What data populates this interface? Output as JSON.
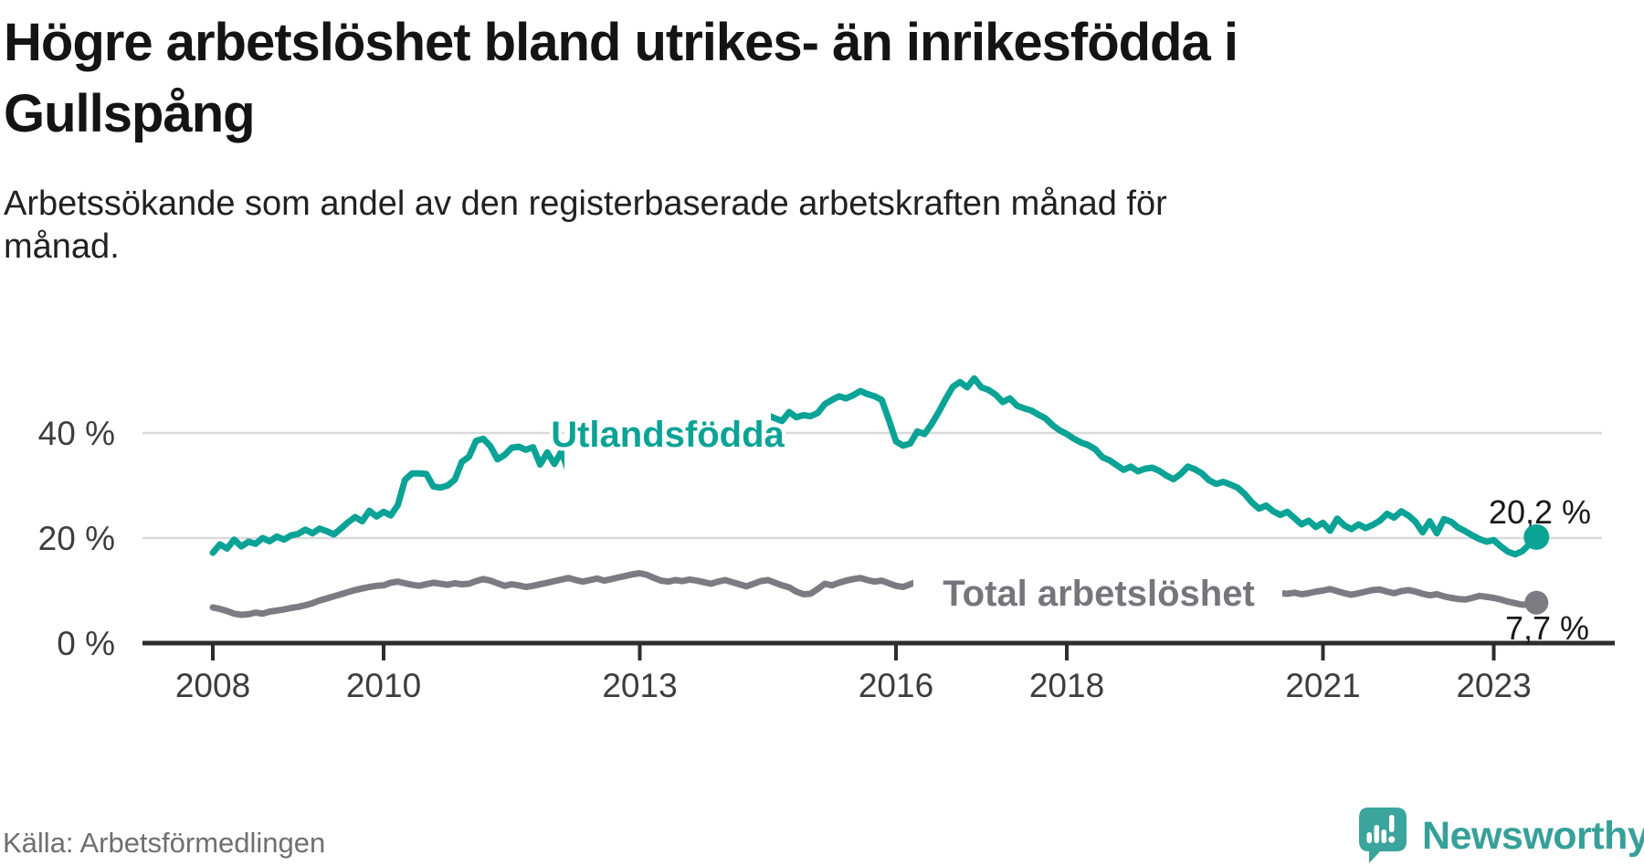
{
  "header": {
    "title_lines": [
      "Högre arbetslöshet bland utrikes- än inrikesfödda i",
      "Gullspång"
    ],
    "subtitle_lines": [
      "Arbetssökande som andel av den registerbaserade arbetskraften månad för",
      "månad."
    ]
  },
  "footer": {
    "source": "Källa: Arbetsförmedlingen",
    "brand": "Newsworthy",
    "brand_color": "#37a099"
  },
  "chart_data": {
    "type": "line",
    "title": "Högre arbetslöshet bland utrikes- än inrikesfödda i Gullspång",
    "subtitle": "Arbetssökande som andel av den registerbaserade arbetskraften månad för månad.",
    "unit": "%",
    "grid": "horizontal",
    "x_axis": {
      "start_year": 2008,
      "end_year": 2023.5,
      "ticks": [
        2008,
        2010,
        2013,
        2016,
        2018,
        2021,
        2023
      ]
    },
    "y_axis": {
      "min": 0,
      "max": 53,
      "ticks": [
        {
          "value": 0,
          "label": "0 %",
          "gridline": false
        },
        {
          "value": 20,
          "label": "20 %",
          "gridline": true
        },
        {
          "value": 40,
          "label": "40 %",
          "gridline": true
        }
      ]
    },
    "series": [
      {
        "name": "Utlandsfödda",
        "color": "#0aa396",
        "start_year": 2008,
        "start_month": 1,
        "end_label": "20,2 %",
        "end_value": 20.2,
        "values": [
          17.2,
          18.8,
          18.0,
          19.7,
          18.4,
          19.3,
          18.9,
          20.0,
          19.4,
          20.3,
          19.7,
          20.5,
          20.8,
          21.6,
          20.9,
          21.8,
          21.3,
          20.7,
          21.8,
          23.0,
          24.0,
          23.2,
          25.2,
          24.1,
          25.0,
          24.3,
          26.3,
          31.1,
          32.3,
          32.3,
          32.2,
          29.8,
          29.6,
          30.0,
          31.1,
          34.5,
          35.5,
          38.5,
          38.9,
          37.5,
          35.0,
          35.8,
          37.2,
          37.4,
          36.8,
          37.3,
          34.0,
          36.3,
          34.1,
          36.5,
          32.5,
          34.6,
          35.2,
          34.6,
          35.0,
          34.4,
          35.0,
          35.4,
          35.1,
          35.7,
          36.2,
          37.0,
          36.5,
          37.6,
          38.3,
          38.9,
          39.6,
          40.2,
          40.7,
          41.3,
          41.0,
          41.6,
          41.9,
          42.4,
          42.9,
          43.3,
          42.6,
          43.0,
          43.4,
          42.8,
          42.3,
          44.0,
          43.0,
          43.4,
          43.2,
          43.8,
          45.5,
          46.3,
          47.0,
          46.6,
          47.2,
          48.0,
          47.4,
          47.0,
          46.3,
          42.5,
          38.4,
          37.6,
          38.0,
          40.3,
          39.8,
          41.7,
          44.0,
          46.5,
          48.8,
          49.7,
          48.7,
          50.4,
          48.7,
          48.2,
          47.3,
          45.9,
          46.6,
          45.2,
          44.7,
          44.3,
          43.5,
          42.8,
          41.5,
          40.5,
          39.8,
          38.9,
          38.2,
          37.7,
          36.9,
          35.4,
          34.8,
          33.9,
          33.0,
          33.6,
          32.7,
          33.2,
          33.4,
          32.8,
          31.9,
          31.2,
          32.2,
          33.6,
          33.1,
          32.3,
          31.0,
          30.3,
          30.7,
          30.2,
          29.6,
          28.4,
          26.8,
          25.6,
          26.2,
          25.1,
          24.4,
          25.0,
          23.8,
          22.6,
          23.3,
          22.1,
          22.9,
          21.4,
          23.7,
          22.4,
          21.7,
          22.6,
          21.9,
          22.5,
          23.3,
          24.6,
          23.9,
          25.1,
          24.3,
          23.1,
          21.1,
          23.2,
          20.9,
          23.6,
          23.1,
          22.0,
          21.3,
          20.5,
          19.8,
          19.3,
          19.6,
          18.4,
          17.4,
          16.9,
          17.5,
          18.8,
          20.2
        ]
      },
      {
        "name": "Total arbetslöshet",
        "color": "#7c7b81",
        "start_year": 2008,
        "start_month": 1,
        "end_label": "7,7 %",
        "end_value": 7.7,
        "values": [
          6.8,
          6.5,
          6.1,
          5.6,
          5.4,
          5.5,
          5.8,
          5.6,
          6.0,
          6.2,
          6.4,
          6.7,
          6.9,
          7.2,
          7.6,
          8.1,
          8.5,
          8.9,
          9.3,
          9.7,
          10.1,
          10.4,
          10.7,
          10.9,
          11.0,
          11.5,
          11.7,
          11.4,
          11.1,
          10.9,
          11.2,
          11.5,
          11.3,
          11.1,
          11.4,
          11.2,
          11.3,
          11.8,
          12.2,
          11.9,
          11.4,
          10.9,
          11.2,
          11.0,
          10.7,
          10.9,
          11.2,
          11.5,
          11.8,
          12.1,
          12.4,
          12.0,
          11.7,
          12.0,
          12.3,
          11.9,
          12.2,
          12.5,
          12.8,
          13.1,
          13.3,
          13.0,
          12.4,
          11.9,
          11.7,
          12.0,
          11.8,
          12.1,
          11.9,
          11.6,
          11.3,
          11.7,
          12.0,
          11.6,
          11.2,
          10.8,
          11.3,
          11.8,
          12.0,
          11.5,
          11.0,
          10.6,
          9.8,
          9.3,
          9.4,
          10.3,
          11.3,
          11.0,
          11.5,
          11.9,
          12.2,
          12.4,
          12.0,
          11.7,
          11.9,
          11.4,
          10.9,
          10.7,
          11.2,
          11.7,
          11.4,
          11.1,
          10.9,
          11.1,
          10.8,
          11.0,
          10.7,
          10.9,
          11.0,
          10.8,
          10.5,
          10.7,
          10.4,
          10.6,
          10.3,
          10.5,
          10.2,
          10.4,
          10.6,
          10.3,
          10.5,
          10.2,
          10.0,
          10.2,
          9.9,
          10.1,
          10.4,
          10.1,
          9.9,
          10.1,
          9.8,
          10.0,
          10.2,
          9.9,
          9.7,
          9.9,
          9.6,
          9.8,
          10.0,
          9.7,
          9.5,
          9.7,
          9.9,
          9.6,
          9.8,
          10.1,
          10.4,
          10.2,
          9.9,
          9.7,
          9.5,
          9.4,
          9.6,
          9.3,
          9.5,
          9.8,
          10.0,
          10.3,
          9.9,
          9.5,
          9.2,
          9.5,
          9.8,
          10.1,
          10.2,
          9.8,
          9.5,
          9.9,
          10.1,
          9.8,
          9.4,
          9.1,
          9.3,
          8.9,
          8.6,
          8.4,
          8.3,
          8.6,
          9.0,
          8.8,
          8.6,
          8.3,
          7.9,
          7.6,
          7.3,
          7.4,
          7.7
        ]
      }
    ]
  }
}
